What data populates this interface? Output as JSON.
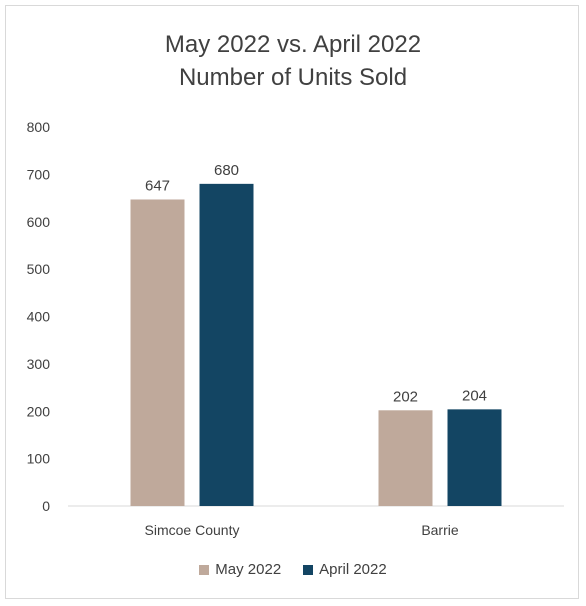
{
  "chart_data": {
    "type": "bar",
    "title_lines": [
      "May 2022 vs. April 2022",
      "Number of Units Sold"
    ],
    "categories": [
      "Simcoe County",
      "Barrie"
    ],
    "series": [
      {
        "name": "May 2022",
        "values": [
          647,
          202
        ],
        "color": "#bfa99b"
      },
      {
        "name": "April 2022",
        "values": [
          680,
          204
        ],
        "color": "#134563"
      }
    ],
    "yticks": [
      0,
      100,
      200,
      300,
      400,
      500,
      600,
      700,
      800
    ],
    "ylim": [
      0,
      800
    ],
    "grid": false,
    "legend_position": "bottom",
    "xlabel": "",
    "ylabel": ""
  }
}
